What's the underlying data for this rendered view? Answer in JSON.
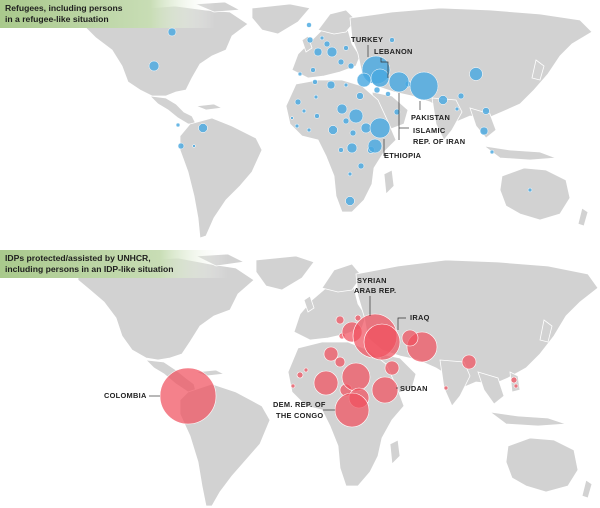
{
  "colors": {
    "refugees": "#49a8e0",
    "idps": "#f0505e",
    "land": "#d2d2d2",
    "header_band": "#b9d3a2"
  },
  "refugees_map": {
    "title_line1": "Refugees, including persons",
    "title_line2": "in a refugee-like situation",
    "labels": {
      "turkey": "TURKEY",
      "lebanon": "LEBANON",
      "pakistan": "PAKISTAN",
      "iran_line1": "ISLAMIC",
      "iran_line2": "REP. OF IRAN",
      "ethiopia": "ETHIOPIA"
    }
  },
  "idps_map": {
    "title_line1": "IDPs protected/assisted by UNHCR,",
    "title_line2": "including persons in an IDP-like situation",
    "labels": {
      "syria_line1": "SYRIAN",
      "syria_line2": "ARAB REP.",
      "iraq": "IRAQ",
      "colombia": "COLOMBIA",
      "sudan": "SUDAN",
      "drc_line1": "DEM. REP. OF",
      "drc_line2": "THE CONGO"
    }
  }
}
